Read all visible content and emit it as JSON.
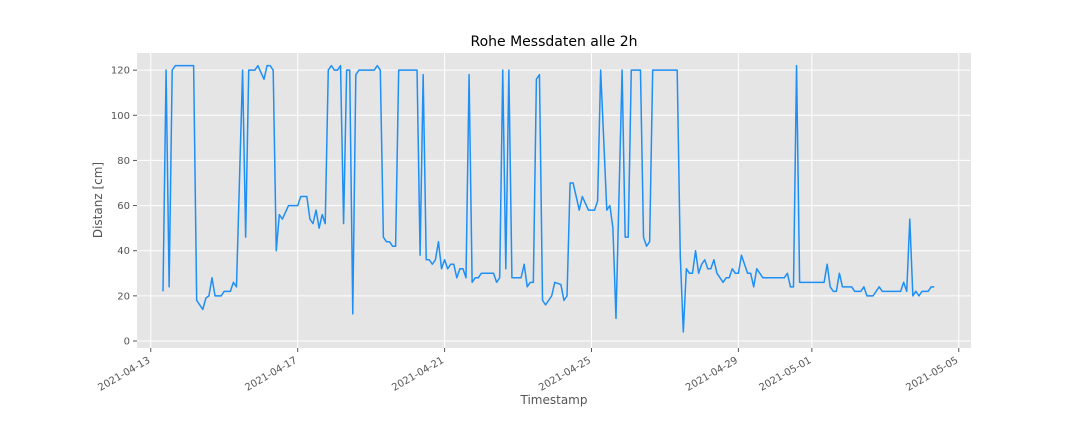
{
  "chart_data": {
    "type": "line",
    "title": "Rohe Messdaten alle 2h",
    "x_label": "Timestamp",
    "y_label": "Distanz [cm]",
    "xlim": [
      "2021-04-12 15:00",
      "2021-05-05 08:00"
    ],
    "xticks": [
      "2021-04-13",
      "2021-04-17",
      "2021-04-21",
      "2021-04-25",
      "2021-04-29",
      "2021-05-01",
      "2021-05-05"
    ],
    "ylim": [
      -3.1,
      127.6
    ],
    "yticks": [
      0,
      20,
      40,
      60,
      80,
      100,
      120
    ],
    "grid": true,
    "series": [
      {
        "name": "Distanz",
        "color": "#1e8ff5",
        "x": [
          "2021-04-13 08:00",
          "2021-04-13 10:00",
          "2021-04-13 12:00",
          "2021-04-13 14:00",
          "2021-04-13 16:00",
          "2021-04-14 04:00",
          "2021-04-14 06:00",
          "2021-04-14 10:00",
          "2021-04-14 12:00",
          "2021-04-14 14:00",
          "2021-04-14 16:00",
          "2021-04-14 18:00",
          "2021-04-14 22:00",
          "2021-04-15 00:00",
          "2021-04-15 04:00",
          "2021-04-15 06:00",
          "2021-04-15 08:00",
          "2021-04-15 12:00",
          "2021-04-15 14:00",
          "2021-04-15 16:00",
          "2021-04-15 20:00",
          "2021-04-15 22:00",
          "2021-04-16 02:00",
          "2021-04-16 04:00",
          "2021-04-16 06:00",
          "2021-04-16 08:00",
          "2021-04-16 10:00",
          "2021-04-16 12:00",
          "2021-04-16 14:00",
          "2021-04-16 18:00",
          "2021-04-17 00:00",
          "2021-04-17 02:00",
          "2021-04-17 06:00",
          "2021-04-17 08:00",
          "2021-04-17 10:00",
          "2021-04-17 12:00",
          "2021-04-17 14:00",
          "2021-04-17 16:00",
          "2021-04-17 18:00",
          "2021-04-17 20:00",
          "2021-04-17 22:00",
          "2021-04-18 00:00",
          "2021-04-18 02:00",
          "2021-04-18 04:00",
          "2021-04-18 06:00",
          "2021-04-18 08:00",
          "2021-04-18 10:00",
          "2021-04-18 12:00",
          "2021-04-18 14:00",
          "2021-04-18 16:00",
          "2021-04-19 02:00",
          "2021-04-19 04:00",
          "2021-04-19 06:00",
          "2021-04-19 08:00",
          "2021-04-19 10:00",
          "2021-04-19 12:00",
          "2021-04-19 14:00",
          "2021-04-19 16:00",
          "2021-04-19 18:00",
          "2021-04-20 06:00",
          "2021-04-20 08:00",
          "2021-04-20 10:00",
          "2021-04-20 12:00",
          "2021-04-20 14:00",
          "2021-04-20 16:00",
          "2021-04-20 18:00",
          "2021-04-20 20:00",
          "2021-04-20 22:00",
          "2021-04-21 00:00",
          "2021-04-21 02:00",
          "2021-04-21 04:00",
          "2021-04-21 06:00",
          "2021-04-21 08:00",
          "2021-04-21 10:00",
          "2021-04-21 12:00",
          "2021-04-21 14:00",
          "2021-04-21 16:00",
          "2021-04-21 18:00",
          "2021-04-21 20:00",
          "2021-04-21 22:00",
          "2021-04-22 00:00",
          "2021-04-22 08:00",
          "2021-04-22 10:00",
          "2021-04-22 12:00",
          "2021-04-22 14:00",
          "2021-04-22 16:00",
          "2021-04-22 18:00",
          "2021-04-22 20:00",
          "2021-04-23 02:00",
          "2021-04-23 04:00",
          "2021-04-23 06:00",
          "2021-04-23 08:00",
          "2021-04-23 10:00",
          "2021-04-23 12:00",
          "2021-04-23 14:00",
          "2021-04-23 16:00",
          "2021-04-23 18:00",
          "2021-04-23 22:00",
          "2021-04-24 00:00",
          "2021-04-24 04:00",
          "2021-04-24 06:00",
          "2021-04-24 08:00",
          "2021-04-24 10:00",
          "2021-04-24 12:00",
          "2021-04-24 14:00",
          "2021-04-24 16:00",
          "2021-04-24 18:00",
          "2021-04-24 22:00",
          "2021-04-25 02:00",
          "2021-04-25 04:00",
          "2021-04-25 06:00",
          "2021-04-25 10:00",
          "2021-04-25 12:00",
          "2021-04-25 14:00",
          "2021-04-25 16:00",
          "2021-04-25 20:00",
          "2021-04-25 22:00",
          "2021-04-26 00:00",
          "2021-04-26 02:00",
          "2021-04-26 08:00",
          "2021-04-26 10:00",
          "2021-04-26 12:00",
          "2021-04-26 14:00",
          "2021-04-26 16:00",
          "2021-04-27 08:00",
          "2021-04-27 10:00",
          "2021-04-27 12:00",
          "2021-04-27 14:00",
          "2021-04-27 16:00",
          "2021-04-27 18:00",
          "2021-04-27 20:00",
          "2021-04-27 22:00",
          "2021-04-28 00:00",
          "2021-04-28 02:00",
          "2021-04-28 04:00",
          "2021-04-28 06:00",
          "2021-04-28 08:00",
          "2021-04-28 10:00",
          "2021-04-28 12:00",
          "2021-04-28 14:00",
          "2021-04-28 16:00",
          "2021-04-28 18:00",
          "2021-04-28 20:00",
          "2021-04-28 22:00",
          "2021-04-29 00:00",
          "2021-04-29 02:00",
          "2021-04-29 04:00",
          "2021-04-29 06:00",
          "2021-04-29 08:00",
          "2021-04-29 10:00",
          "2021-04-29 12:00",
          "2021-04-29 14:00",
          "2021-04-29 16:00",
          "2021-04-30 06:00",
          "2021-04-30 08:00",
          "2021-04-30 10:00",
          "2021-04-30 12:00",
          "2021-04-30 14:00",
          "2021-04-30 16:00",
          "2021-05-01 08:00",
          "2021-05-01 10:00",
          "2021-05-01 12:00",
          "2021-05-01 14:00",
          "2021-05-01 16:00",
          "2021-05-01 18:00",
          "2021-05-01 20:00",
          "2021-05-02 02:00",
          "2021-05-02 04:00",
          "2021-05-02 08:00",
          "2021-05-02 10:00",
          "2021-05-02 12:00",
          "2021-05-02 16:00",
          "2021-05-02 20:00",
          "2021-05-02 22:00",
          "2021-05-03 10:00",
          "2021-05-03 12:00",
          "2021-05-03 14:00",
          "2021-05-03 16:00",
          "2021-05-03 18:00",
          "2021-05-03 20:00",
          "2021-05-03 22:00",
          "2021-05-04 00:00",
          "2021-05-04 04:00",
          "2021-05-04 06:00",
          "2021-05-04 08:00"
        ],
        "values": [
          22,
          120,
          24,
          120,
          122,
          122,
          18,
          14,
          19,
          20,
          28,
          20,
          20,
          22,
          22,
          26,
          24,
          120,
          46,
          120,
          120,
          122,
          116,
          122,
          122,
          120,
          40,
          56,
          54,
          60,
          60,
          64,
          64,
          54,
          52,
          58,
          50,
          56,
          52,
          120,
          122,
          120,
          120,
          122,
          52,
          120,
          120,
          12,
          118,
          120,
          120,
          122,
          120,
          46,
          44,
          44,
          42,
          42,
          120,
          120,
          38,
          118,
          36,
          36,
          34,
          36,
          44,
          32,
          36,
          32,
          34,
          34,
          28,
          32,
          32,
          28,
          118,
          26,
          28,
          28,
          30,
          30,
          26,
          28,
          120,
          32,
          120,
          28,
          28,
          34,
          24,
          26,
          26,
          116,
          118,
          18,
          16,
          20,
          26,
          25,
          18,
          20,
          70,
          70,
          64,
          58,
          64,
          58,
          58,
          62,
          120,
          58,
          60,
          50,
          10,
          120,
          46,
          46,
          120,
          120,
          46,
          42,
          44,
          120,
          120,
          38,
          4,
          32,
          30,
          30,
          40,
          30,
          34,
          36,
          32,
          32,
          36,
          30,
          28,
          26,
          28,
          28,
          32,
          30,
          30,
          38,
          34,
          30,
          30,
          24,
          32,
          30,
          28,
          28,
          30,
          24,
          24,
          122,
          26,
          26,
          34,
          24,
          22,
          22,
          30,
          24,
          24,
          22,
          22,
          24,
          20,
          20,
          24,
          22,
          22,
          26,
          22,
          54,
          20,
          22,
          20,
          22,
          22,
          24,
          24
        ]
      }
    ]
  }
}
